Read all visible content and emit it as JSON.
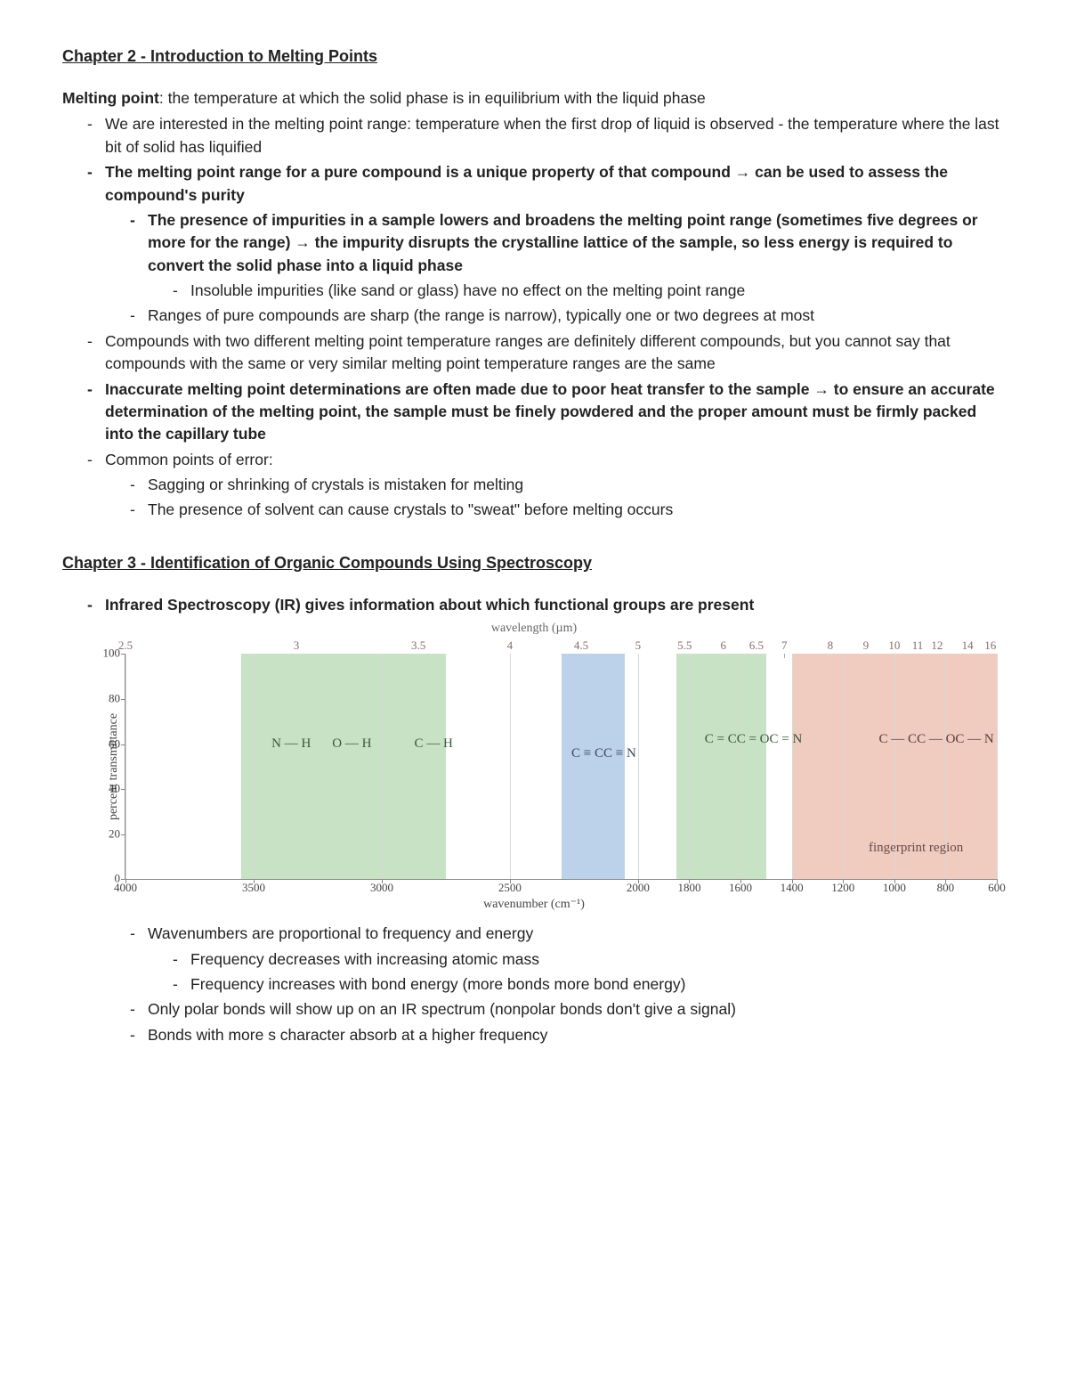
{
  "chapter2": {
    "title": "Chapter 2 - Introduction to Melting Points",
    "def_term": "Melting point",
    "def_body": ": the temperature at which the solid phase is in equilibrium with the liquid phase",
    "b1": "We are interested in the melting point range: temperature when the first drop of liquid is observed - the temperature where the last bit of solid has liquified",
    "b2": "The melting point range for a pure compound is a unique property of that compound → can be used to assess the compound's purity",
    "b2a": "The presence of impurities in a sample lowers and broadens the melting point range (sometimes five degrees or more for the range) → the impurity disrupts the crystalline lattice of the sample, so less energy is required to convert the solid phase into a liquid phase",
    "b2a1": "Insoluble impurities (like sand or glass) have no effect on the melting point range",
    "b2b": "Ranges of pure compounds are sharp (the range is narrow), typically one or two degrees at most",
    "b3": "Compounds with two different melting point temperature ranges are definitely different compounds, but you cannot say that compounds with the same or very similar melting point temperature ranges are the same",
    "b4": "Inaccurate melting point determinations are often made due to poor heat transfer to the sample → to ensure an accurate determination of the melting point, the sample must be finely powdered and the proper amount must be firmly packed into the capillary tube",
    "b5": "Common points of error:",
    "b5a": "Sagging or shrinking of crystals is mistaken for melting",
    "b5b": "The presence of solvent can cause crystals to \"sweat\" before melting occurs"
  },
  "chapter3": {
    "title": "Chapter 3 - Identification of Organic Compounds Using Spectroscopy",
    "b1": "Infrared Spectroscopy (IR) gives information about which functional groups are present",
    "b2": "Wavenumbers are proportional to frequency and energy",
    "b2a": "Frequency decreases with increasing atomic mass",
    "b2b": "Frequency increases with bond energy (more bonds more bond energy)",
    "b3": "Only polar bonds will show up on an IR spectrum (nonpolar bonds don't give a signal)",
    "b4": "Bonds with more s character absorb at a higher frequency"
  },
  "chart": {
    "top_axis_label": "wavelength (µm)",
    "bottom_axis_label": "wavenumber (cm⁻¹)",
    "y_axis_label": "percent transmittance",
    "yticks": [
      0,
      20,
      40,
      60,
      80,
      100
    ],
    "ymax": 100,
    "xmin_wn": 600,
    "xmax_wn": 4000,
    "bottom_ticks": [
      4000,
      3500,
      3000,
      2500,
      2000,
      1800,
      1600,
      1400,
      1200,
      1000,
      800,
      600
    ],
    "top_ticks": [
      {
        "v": "2.5",
        "wn": 4000
      },
      {
        "v": "3",
        "wn": 3333
      },
      {
        "v": "3.5",
        "wn": 2857
      },
      {
        "v": "4",
        "wn": 2500
      },
      {
        "v": "4.5",
        "wn": 2222
      },
      {
        "v": "5",
        "wn": 2000
      },
      {
        "v": "5.5",
        "wn": 1818
      },
      {
        "v": "6",
        "wn": 1667
      },
      {
        "v": "6.5",
        "wn": 1538
      },
      {
        "v": "7",
        "wn": 1429
      },
      {
        "v": "8",
        "wn": 1250
      },
      {
        "v": "9",
        "wn": 1111
      },
      {
        "v": "10",
        "wn": 1000
      },
      {
        "v": "11",
        "wn": 909
      },
      {
        "v": "12",
        "wn": 833
      },
      {
        "v": "14",
        "wn": 714
      },
      {
        "v": "16",
        "wn": 625
      }
    ],
    "regions": [
      {
        "from": 3550,
        "to": 2750,
        "color": "#c7e2c4",
        "labels": [
          "N — H",
          "O — H",
          "C — H"
        ],
        "label_left_wn": 3430,
        "label_top_pct": 36,
        "indent_step": 24,
        "text_color": "#3a5a3a"
      },
      {
        "from": 2300,
        "to": 2050,
        "color": "#bcd1ea",
        "labels": [
          "C ≡ C",
          "C ≡ N"
        ],
        "label_left_wn": 2260,
        "label_top_pct": 40,
        "indent_step": 0,
        "text_color": "#3a4a5a"
      },
      {
        "from": 1850,
        "to": 1500,
        "color": "#c7e2c4",
        "labels": [
          "C = C",
          "C = O",
          "C = N"
        ],
        "label_left_wn": 1740,
        "label_top_pct": 34,
        "indent_step": 0,
        "text_color": "#3a5a3a"
      },
      {
        "from": 1400,
        "to": 600,
        "color": "#f0cbbf",
        "labels": [
          "C — C",
          "C — O",
          "C — N"
        ],
        "label_left_wn": 1060,
        "label_top_pct": 34,
        "indent_step": 0,
        "text_color": "#5a3a3a"
      }
    ],
    "fingerprint_text": "fingerprint region",
    "fingerprint_wn": 1100,
    "fingerprint_top_pct": 82
  }
}
